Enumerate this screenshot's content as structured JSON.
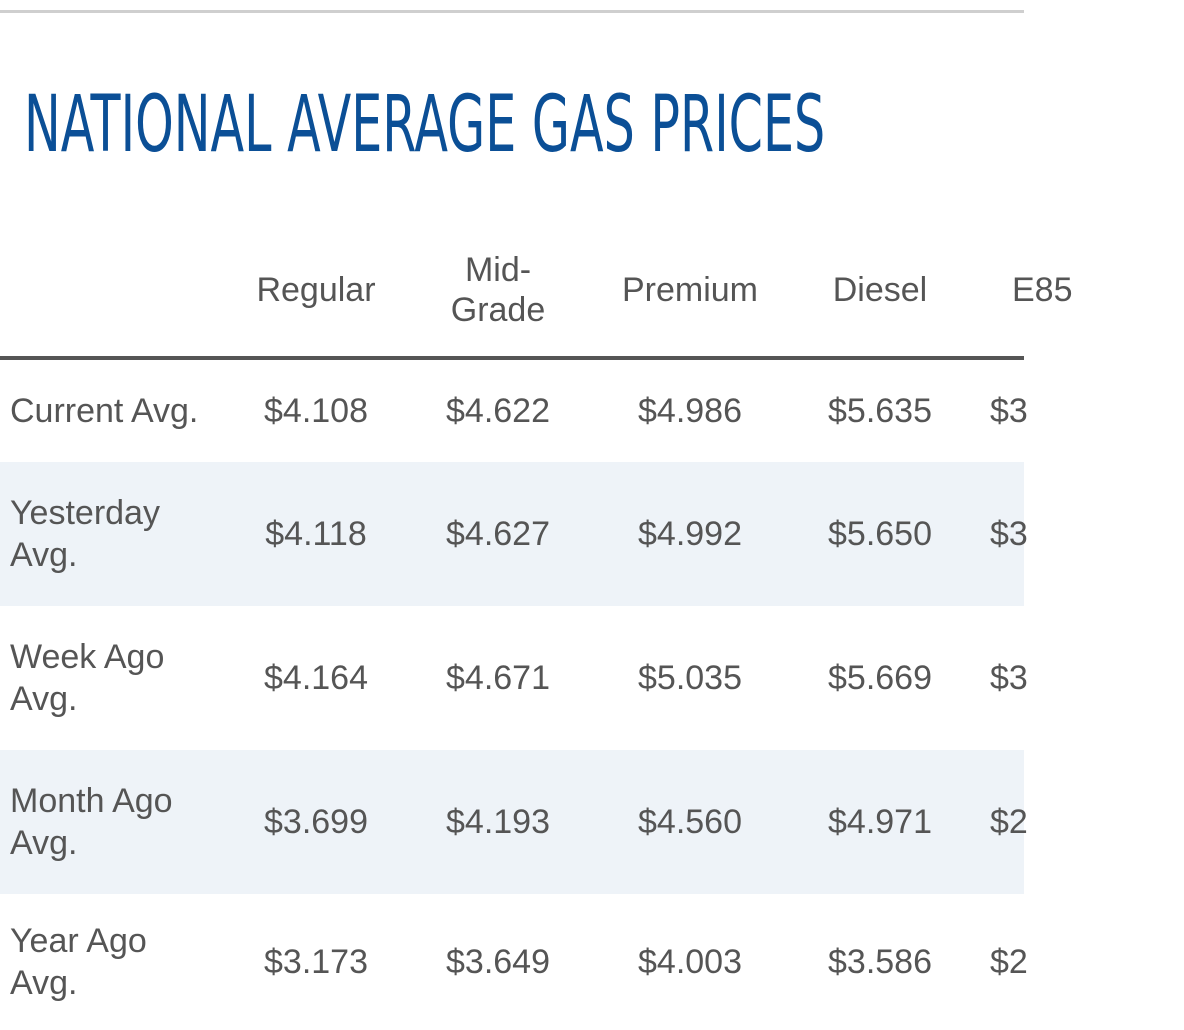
{
  "page": {
    "title": "NATIONAL AVERAGE GAS PRICES"
  },
  "table": {
    "columns": [
      "Regular",
      "Mid-\nGrade",
      "Premium",
      "Diesel",
      "E85"
    ],
    "rows": [
      {
        "label": "Current Avg.",
        "values": [
          "$4.108",
          "$4.622",
          "$4.986",
          "$5.635",
          "$3"
        ]
      },
      {
        "label": "Yesterday\nAvg.",
        "values": [
          "$4.118",
          "$4.627",
          "$4.992",
          "$5.650",
          "$3"
        ]
      },
      {
        "label": "Week Ago\nAvg.",
        "values": [
          "$4.164",
          "$4.671",
          "$5.035",
          "$5.669",
          "$3"
        ]
      },
      {
        "label": "Month Ago\nAvg.",
        "values": [
          "$3.699",
          "$4.193",
          "$4.560",
          "$4.971",
          "$2"
        ]
      },
      {
        "label": "Year Ago\nAvg.",
        "values": [
          "$3.173",
          "$3.649",
          "$4.003",
          "$3.586",
          "$2"
        ]
      }
    ]
  },
  "colors": {
    "title": "#0b4f96",
    "text": "#555555",
    "alt_row": "#eef3f8",
    "header_rule": "#555555"
  }
}
